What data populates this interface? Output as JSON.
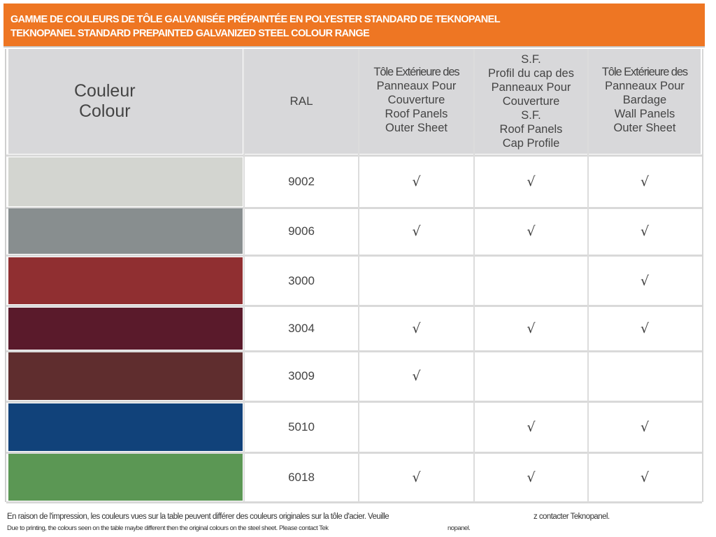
{
  "banner": {
    "title_fr": "GAMME DE COULEURS DE TÔLE GALVANISÉE PRÉPAINTÉE EN POLYESTER STANDARD DE TEKNOPANEL",
    "title_en": "TEKNOPANEL STANDARD PREPAINTED GALVANIZED STEEL COLOUR RANGE",
    "color": "#ee7623"
  },
  "table": {
    "headers": {
      "colour": [
        "Couleur",
        "Colour"
      ],
      "ral": "RAL",
      "roof_outer": [
        "Tôle Extérieure des",
        "Panneaux Pour",
        "Couverture",
        "Roof Panels",
        "Outer Sheet"
      ],
      "roof_cap": [
        "S.F.",
        "Profil du cap des",
        "Panneaux Pour",
        "Couverture",
        "S.F.",
        "Roof Panels",
        "Cap Profile"
      ],
      "wall_outer": [
        "Tôle Extérieure des",
        "Panneaux Pour",
        "Bardage",
        "Wall Panels",
        "Outer Sheet"
      ]
    },
    "check_mark": "√",
    "rows": [
      {
        "ral": "9002",
        "swatch": "#d3d5d0",
        "roof_outer": true,
        "roof_cap": true,
        "wall_outer": true
      },
      {
        "ral": "9006",
        "swatch": "#888e8f",
        "roof_outer": true,
        "roof_cap": true,
        "wall_outer": true
      },
      {
        "ral": "3000",
        "swatch": "#902f31",
        "roof_outer": false,
        "roof_cap": false,
        "wall_outer": true
      },
      {
        "ral": "3004",
        "swatch": "#5a1a2b",
        "roof_outer": true,
        "roof_cap": true,
        "wall_outer": true
      },
      {
        "ral": "3009",
        "swatch": "#5f2d2e",
        "roof_outer": true,
        "roof_cap": false,
        "wall_outer": false
      },
      {
        "ral": "5010",
        "swatch": "#11427a",
        "roof_outer": false,
        "roof_cap": true,
        "wall_outer": true
      },
      {
        "ral": "6018",
        "swatch": "#5b9754",
        "roof_outer": true,
        "roof_cap": true,
        "wall_outer": true
      }
    ]
  },
  "footer": {
    "note_fr_part1": "En raison de l'impression, les couleurs vues sur la table peuvent différer des couleurs originales sur la tôle d'acier. Veuille",
    "note_fr_part2": "z contacter Teknopanel.",
    "note_en_part1": "Due to printing, the colours seen on the table maybe different then the original colours on the steel sheet. Please contact Tek",
    "note_en_part2": "nopanel."
  }
}
